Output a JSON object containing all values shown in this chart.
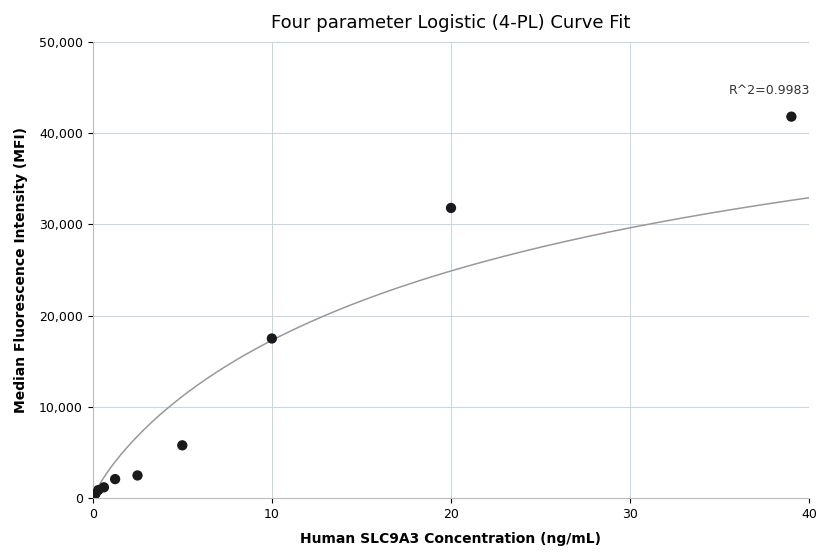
{
  "title": "Four parameter Logistic (4-PL) Curve Fit",
  "xlabel": "Human SLC9A3 Concentration (ng/mL)",
  "ylabel": "Median Fluorescence Intensity (MFI)",
  "scatter_x": [
    0.156,
    0.313,
    0.625,
    1.25,
    2.5,
    5.0,
    10.0,
    20.0,
    39.0
  ],
  "scatter_y": [
    500,
    900,
    1200,
    2100,
    2500,
    5800,
    17500,
    31800,
    41800
  ],
  "xlim": [
    0,
    40
  ],
  "ylim": [
    0,
    50000
  ],
  "yticks": [
    0,
    10000,
    20000,
    30000,
    40000,
    50000
  ],
  "xticks": [
    0,
    10,
    20,
    30,
    40
  ],
  "r_squared_text": "R^2=0.9983",
  "r2_x": 35.5,
  "r2_y": 44000,
  "scatter_color": "#1a1a1a",
  "line_color": "#999999",
  "bg_color": "#ffffff",
  "grid_color": "#c5d5e8",
  "title_fontsize": 13,
  "label_fontsize": 10,
  "tick_fontsize": 9,
  "annotation_fontsize": 9
}
